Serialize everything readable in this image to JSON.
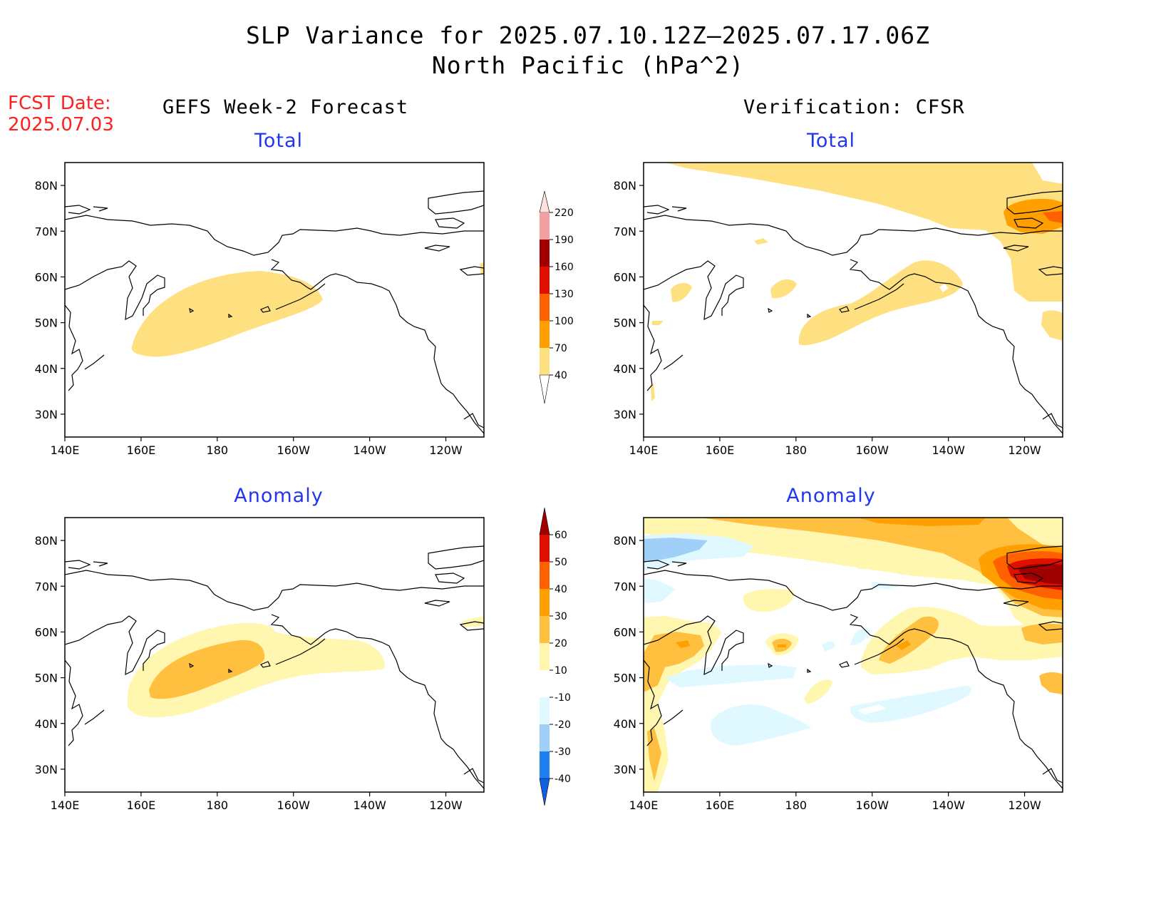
{
  "title": {
    "line1": "SLP Variance for 2025.07.10.12Z–2025.07.17.06Z",
    "line2": "North Pacific (hPa^2)"
  },
  "fcst_date": {
    "label": "FCST Date:",
    "value": "2025.07.03"
  },
  "columns": {
    "left": "GEFS Week-2 Forecast",
    "right": "Verification: CFSR"
  },
  "panels": {
    "forecast_total": {
      "label": "Total"
    },
    "verification_total": {
      "label": "Total"
    },
    "forecast_anomaly": {
      "label": "Anomaly"
    },
    "verification_anomaly": {
      "label": "Anomaly"
    }
  },
  "map_axes": {
    "lat_labels": [
      "80N",
      "70N",
      "60N",
      "50N",
      "40N",
      "30N"
    ],
    "lat_values": [
      80,
      70,
      60,
      50,
      40,
      30
    ],
    "lon_labels": [
      "140E",
      "160E",
      "180",
      "160W",
      "140W",
      "120W"
    ],
    "lon_values": [
      140,
      160,
      180,
      200,
      220,
      240
    ],
    "lat_range": [
      25,
      85
    ],
    "lon_range": [
      140,
      250
    ]
  },
  "colorbars": {
    "total": {
      "labels": [
        "40",
        "70",
        "100",
        "130",
        "160",
        "190",
        "220"
      ],
      "colors": [
        "#ffe080",
        "#ffa000",
        "#ff6000",
        "#e01000",
        "#a00000",
        "#f0a0a0",
        "#ffe0e0"
      ]
    },
    "anomaly": {
      "labels": [
        "-40",
        "-30",
        "-20",
        "-10",
        "10",
        "20",
        "30",
        "40",
        "50",
        "60"
      ],
      "colors": [
        "#1060e0",
        "#2080f0",
        "#a0d0f8",
        "#e0f8ff",
        "#ffffff",
        "#fff6b0",
        "#ffc040",
        "#ffa000",
        "#ff6000",
        "#e01000",
        "#a00000"
      ]
    }
  }
}
